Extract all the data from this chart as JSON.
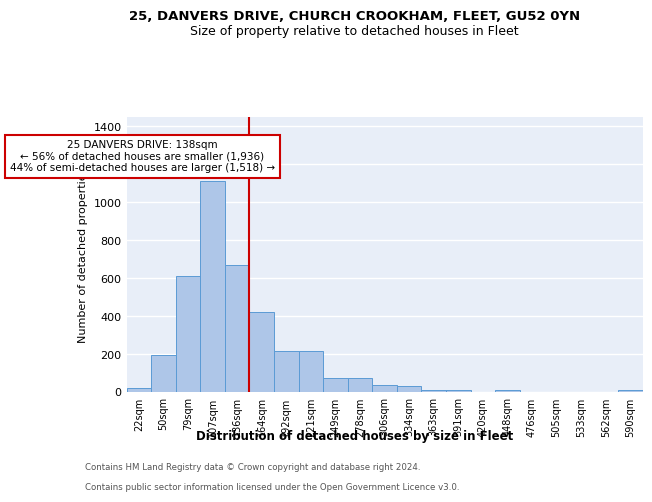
{
  "title1": "25, DANVERS DRIVE, CHURCH CROOKHAM, FLEET, GU52 0YN",
  "title2": "Size of property relative to detached houses in Fleet",
  "xlabel": "Distribution of detached houses by size in Fleet",
  "ylabel": "Number of detached properties",
  "bin_labels": [
    "22sqm",
    "50sqm",
    "79sqm",
    "107sqm",
    "136sqm",
    "164sqm",
    "192sqm",
    "221sqm",
    "249sqm",
    "278sqm",
    "306sqm",
    "334sqm",
    "363sqm",
    "391sqm",
    "420sqm",
    "448sqm",
    "476sqm",
    "505sqm",
    "533sqm",
    "562sqm",
    "590sqm"
  ],
  "bar_values": [
    20,
    195,
    610,
    1110,
    670,
    420,
    215,
    215,
    75,
    75,
    35,
    30,
    13,
    13,
    0,
    13,
    0,
    0,
    0,
    0,
    13
  ],
  "bar_color": "#aec6e8",
  "bar_edgecolor": "#5b9bd5",
  "annotation_line1": "25 DANVERS DRIVE: 138sqm",
  "annotation_line2": "← 56% of detached houses are smaller (1,936)",
  "annotation_line3": "44% of semi-detached houses are larger (1,518) →",
  "vline_color": "#cc0000",
  "ylim": [
    0,
    1450
  ],
  "yticks": [
    0,
    200,
    400,
    600,
    800,
    1000,
    1200,
    1400
  ],
  "footnote1": "Contains HM Land Registry data © Crown copyright and database right 2024.",
  "footnote2": "Contains public sector information licensed under the Open Government Licence v3.0.",
  "bg_color": "#e8eef8",
  "grid_color": "#ffffff",
  "annotation_box_color": "#ffffff",
  "annotation_box_edgecolor": "#cc0000"
}
